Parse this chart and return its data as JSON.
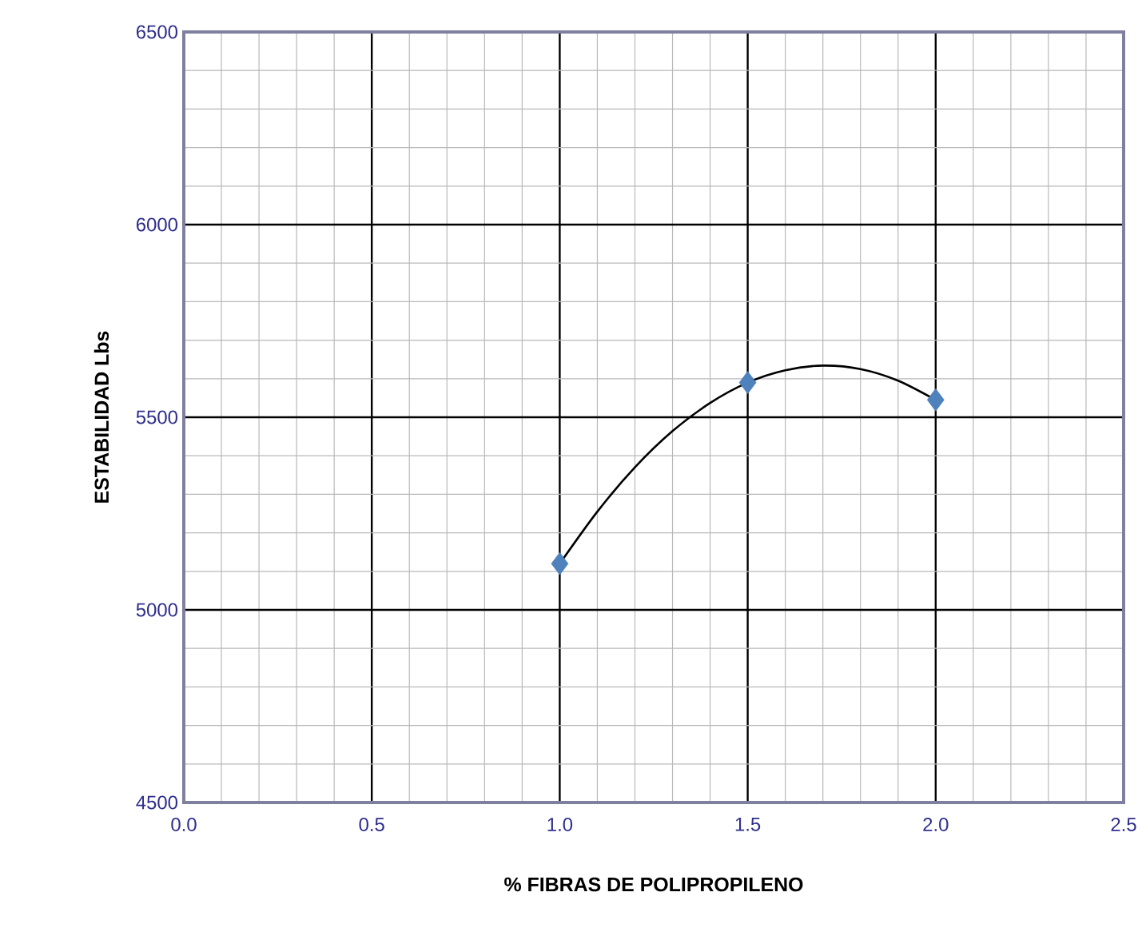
{
  "chart_data": {
    "type": "scatter",
    "xlabel": "% FIBRAS DE POLIPROPILENO",
    "ylabel": "ESTABILIDAD  Lbs",
    "xlim": [
      0,
      2.5
    ],
    "ylim": [
      4500,
      6500
    ],
    "xticks": [
      {
        "value": 0,
        "label": "0.0"
      },
      {
        "value": 0.5,
        "label": "0.5"
      },
      {
        "value": 1,
        "label": "1.0"
      },
      {
        "value": 1.5,
        "label": "1.5"
      },
      {
        "value": 2,
        "label": "2.0"
      },
      {
        "value": 2.5,
        "label": "2.5"
      }
    ],
    "yticks": [
      4500,
      5000,
      5500,
      6000,
      6500
    ],
    "grid": true,
    "marker": "diamond",
    "series": [
      {
        "color": "#4f81bd",
        "x": [
          1.0,
          1.5,
          2.0
        ],
        "values": [
          5120,
          5590,
          5545
        ]
      },
      {
        "type": "line",
        "color": "#000000",
        "line_style": "solid",
        "marker": "none",
        "x": [
          1.0,
          1.1,
          1.2,
          1.3,
          1.4,
          1.5,
          1.6,
          1.7,
          1.8,
          1.9,
          2.0
        ],
        "values": [
          5120,
          5255,
          5370,
          5464,
          5537,
          5590,
          5622,
          5634,
          5625,
          5595,
          5545
        ]
      }
    ]
  }
}
